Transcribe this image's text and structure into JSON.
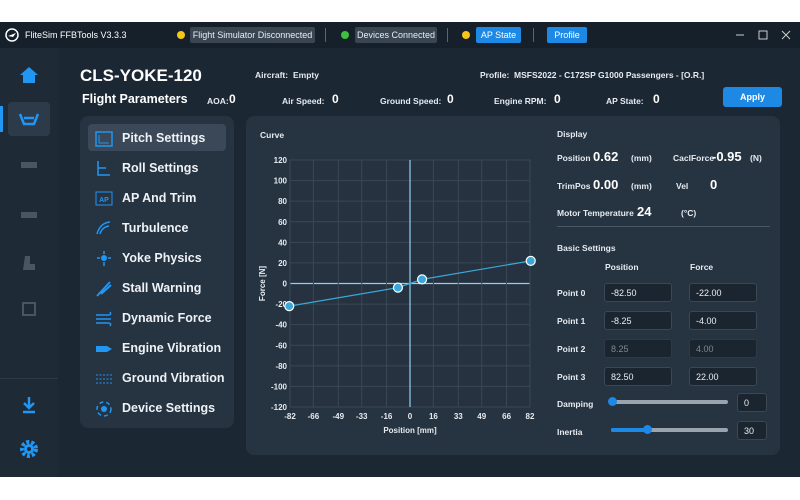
{
  "title_bar": {
    "app_name": "FliteSim FFBTools V3.3.3",
    "sim_status": "Flight Simulator Disconnected",
    "device_status": "Devices Connected",
    "ap_state": "AP State",
    "profile_button": "Profile"
  },
  "header": {
    "device": "CLS-YOKE-120",
    "aircraft_label": "Aircraft:",
    "aircraft": "Empty",
    "profile_label": "Profile:",
    "profile": "MSFS2022 - C172SP G1000 Passengers - [O.R.]",
    "section": "Flight Parameters",
    "params": [
      {
        "label": "AOA:",
        "value": 0
      },
      {
        "label": "Air Speed:",
        "value": 0
      },
      {
        "label": "Ground Speed:",
        "value": 0
      },
      {
        "label": "Engine RPM:",
        "value": 0
      },
      {
        "label": "AP State:",
        "value": 0
      }
    ],
    "apply": "Apply"
  },
  "menu": [
    "Pitch Settings",
    "Roll Settings",
    "AP And Trim",
    "Turbulence",
    "Yoke Physics",
    "Stall Warning",
    "Dynamic Force",
    "Engine Vibration",
    "Ground Vibration",
    "Device Settings"
  ],
  "chart_data": {
    "type": "line",
    "title": "Curve",
    "x_label": "Position [mm]",
    "y_label": "Force [N]",
    "x": [
      -82.5,
      -8.25,
      8.25,
      82.5
    ],
    "series": [
      {
        "color": "#3aa8d8",
        "values": [
          -22,
          -4,
          4,
          22
        ]
      }
    ],
    "xlim": [
      -82,
      82
    ],
    "ylim": [
      -120,
      120
    ],
    "xticks": [
      -82,
      -66,
      -49,
      -33,
      -16,
      0,
      16,
      33,
      49,
      66,
      82
    ],
    "yticks": [
      -120,
      -100,
      -80,
      -60,
      -40,
      -20,
      0,
      20,
      40,
      60,
      80,
      100,
      120
    ],
    "grid": true
  },
  "display": {
    "title": "Display",
    "position_label": "Position",
    "position": 0.62,
    "position_unit": "(mm)",
    "force_label": "CaclForce",
    "force": -0.95,
    "force_unit": "(N)",
    "trimpos_label": "TrimPos",
    "trimpos": "0.00",
    "trimpos_unit": "(mm)",
    "vel_label": "Vel",
    "vel": 0,
    "motor_temp_label": "Motor Temperature",
    "motor_temp": 24,
    "motor_temp_unit": "(°C)"
  },
  "basic_settings": {
    "title": "Basic Settings",
    "col_position": "Position",
    "col_force": "Force",
    "rows": [
      {
        "label": "Point 0",
        "position": "-82.50",
        "force": "-22.00"
      },
      {
        "label": "Point 1",
        "position": "-8.25",
        "force": "-4.00"
      },
      {
        "label": "Point 2",
        "position": "8.25",
        "force": "4.00"
      },
      {
        "label": "Point 3",
        "position": "82.50",
        "force": "22.00"
      }
    ],
    "damping_label": "Damping",
    "damping": 0,
    "inertia_label": "Inertia",
    "inertia": 30
  }
}
